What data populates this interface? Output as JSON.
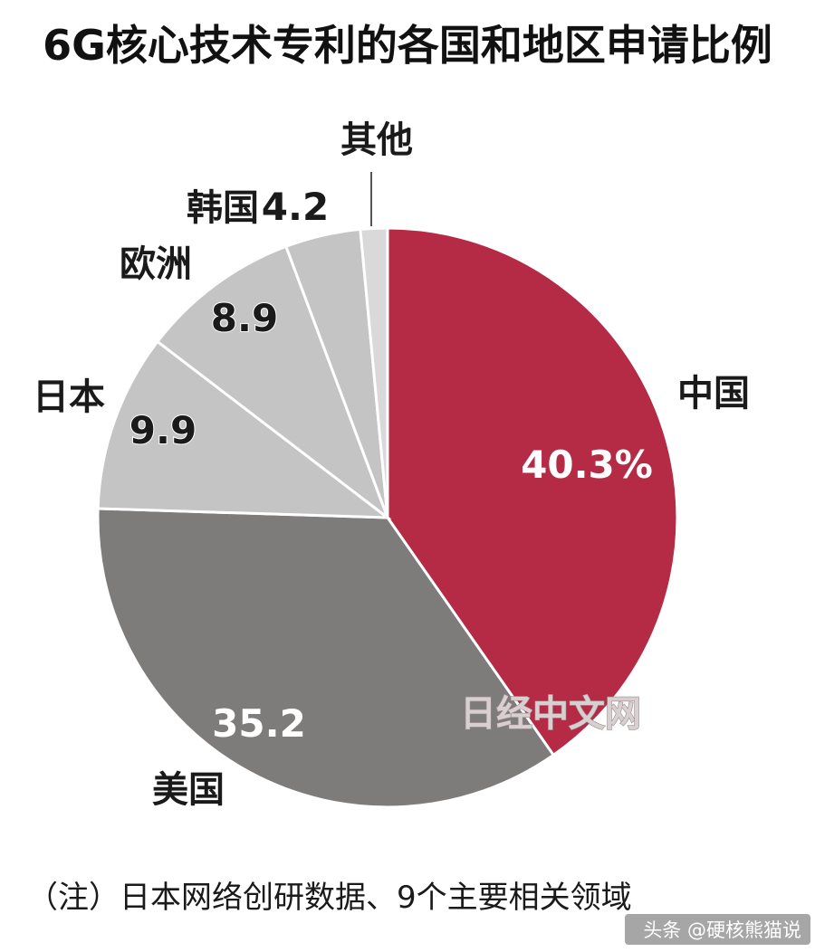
{
  "chart_data": {
    "type": "pie",
    "title": "6G核心技术专利的各国和地区申请比例",
    "categories": [
      "中国",
      "美国",
      "日本",
      "欧洲",
      "韩国",
      "其他"
    ],
    "values": [
      40.3,
      35.2,
      9.9,
      8.9,
      4.2,
      1.5
    ],
    "value_labels": [
      "40.3%",
      "35.2",
      "9.9",
      "8.9",
      "4.2",
      ""
    ],
    "start": "12 o'clock",
    "direction": "clockwise",
    "colors": [
      "#b52a45",
      "#7e7b7b",
      "#c4c4c4",
      "#c4c4c4",
      "#c4c4c4",
      "#d9d9d9"
    ],
    "legend": "none"
  },
  "note": "（注）日本网络创研数据、9个主要相关领域",
  "watermark": "日经中文网",
  "credit": "头条 @硬核熊猫说"
}
